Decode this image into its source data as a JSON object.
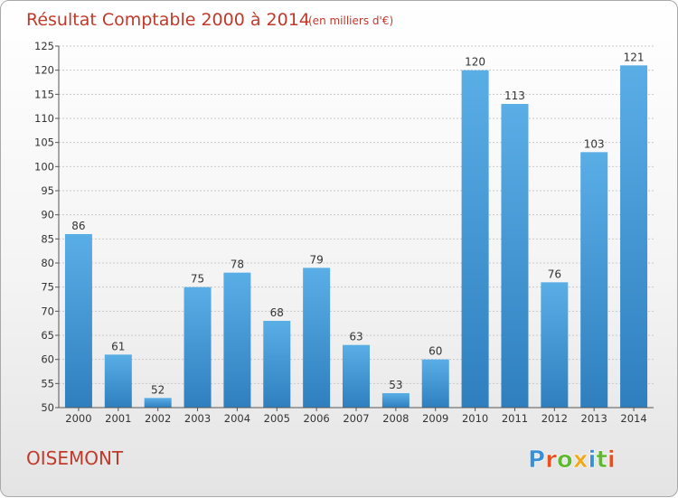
{
  "chart_data": {
    "type": "bar",
    "title": "Résultat Comptable 2000 à 2014",
    "subtitle": "(en milliers d'€)",
    "categories": [
      "2000",
      "2001",
      "2002",
      "2003",
      "2004",
      "2005",
      "2006",
      "2007",
      "2008",
      "2009",
      "2010",
      "2011",
      "2012",
      "2013",
      "2014"
    ],
    "values": [
      86,
      61,
      52,
      75,
      78,
      68,
      79,
      63,
      53,
      60,
      120,
      113,
      76,
      103,
      121
    ],
    "ylim": [
      50,
      125
    ],
    "yticks": [
      50,
      55,
      60,
      65,
      70,
      75,
      80,
      85,
      90,
      95,
      100,
      105,
      110,
      115,
      120,
      125
    ],
    "grid": true,
    "bar_color": "#4a9fdc"
  },
  "commune": "OISEMONT",
  "logo": {
    "text": "Proxiti",
    "colors": [
      "#3a8fd9",
      "#e8511f",
      "#5fb82e",
      "#f2a81d",
      "#3a8fd9",
      "#5fb82e",
      "#e8511f"
    ]
  },
  "colors": {
    "title": "#c0392b",
    "grid": "#c8c8c8"
  }
}
